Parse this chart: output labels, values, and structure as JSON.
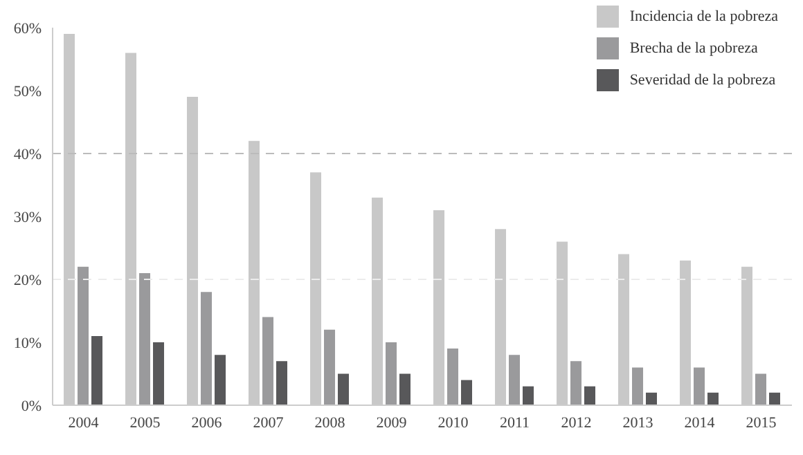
{
  "chart_data": {
    "type": "bar",
    "categories": [
      "2004",
      "2005",
      "2006",
      "2007",
      "2008",
      "2009",
      "2010",
      "2011",
      "2012",
      "2013",
      "2014",
      "2015"
    ],
    "series": [
      {
        "name": "Incidencia de la pobreza",
        "color": "#c8c8c8",
        "values": [
          59,
          56,
          49,
          42,
          37,
          33,
          31,
          28,
          26,
          24,
          23,
          22
        ]
      },
      {
        "name": "Brecha de la pobreza",
        "color": "#9a9a9c",
        "values": [
          22,
          21,
          18,
          14,
          12,
          10,
          9,
          8,
          7,
          6,
          6,
          5
        ]
      },
      {
        "name": "Severidad de la pobreza",
        "color": "#58585a",
        "values": [
          11,
          10,
          8,
          7,
          5,
          5,
          4,
          3,
          3,
          2,
          2,
          2
        ]
      }
    ],
    "ylim": [
      0,
      60
    ],
    "yticks": [
      {
        "value": 0,
        "label": "0%"
      },
      {
        "value": 10,
        "label": "10%"
      },
      {
        "value": 20,
        "label": "20%"
      },
      {
        "value": 30,
        "label": "30%"
      },
      {
        "value": 40,
        "label": "40%"
      },
      {
        "value": 50,
        "label": "50%"
      },
      {
        "value": 60,
        "label": "60%"
      }
    ],
    "ref_lines": [
      {
        "axis": "y",
        "value": 40,
        "color": "#bbbbbb",
        "line_style": "dashed"
      },
      {
        "axis": "y",
        "value": 20,
        "color": "#ececec",
        "line_style": "dashed"
      }
    ],
    "legend": "top right"
  }
}
